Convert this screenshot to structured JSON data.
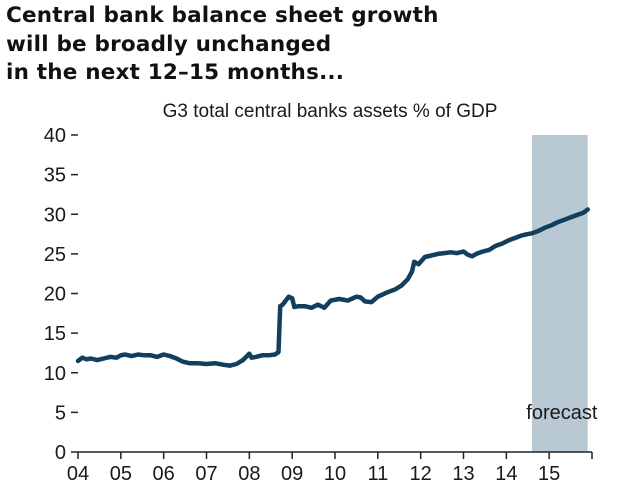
{
  "headline": {
    "lines": [
      "Central bank balance sheet growth",
      "will be broadly unchanged",
      "in the next 12–15 months..."
    ]
  },
  "chart_data": {
    "type": "line",
    "title": "G3 total central banks assets % of GDP",
    "xlabel": "",
    "ylabel": "",
    "ylim": [
      0,
      40
    ],
    "yticks": [
      0,
      5,
      10,
      15,
      20,
      25,
      30,
      35,
      40
    ],
    "xlim": [
      2004,
      2016
    ],
    "xtick_labels": [
      "04",
      "05",
      "06",
      "07",
      "08",
      "09",
      "10",
      "11",
      "12",
      "13",
      "14",
      "15"
    ],
    "grid": false,
    "forecast": {
      "label": "forecast",
      "start": 2014.6,
      "end": 2015.9,
      "color": "#b9c9d3"
    },
    "line_color": "#123f5e",
    "series": [
      {
        "x": [
          2004.0,
          2004.1,
          2004.2,
          2004.3,
          2004.45,
          2004.6,
          2004.75,
          2004.9,
          2005.0,
          2005.1,
          2005.25,
          2005.4,
          2005.55,
          2005.7,
          2005.85,
          2006.0,
          2006.15,
          2006.3,
          2006.45,
          2006.6,
          2006.8,
          2007.0,
          2007.2,
          2007.4,
          2007.55,
          2007.7,
          2007.85,
          2008.0,
          2008.05,
          2008.15,
          2008.3,
          2008.45,
          2008.6,
          2008.68,
          2008.72,
          2008.78,
          2008.85,
          2008.92,
          2009.0,
          2009.05,
          2009.15,
          2009.3,
          2009.45,
          2009.6,
          2009.75,
          2009.9,
          2010.1,
          2010.3,
          2010.5,
          2010.6,
          2010.7,
          2010.85,
          2011.0,
          2011.2,
          2011.4,
          2011.55,
          2011.7,
          2011.8,
          2011.85,
          2011.95,
          2012.1,
          2012.25,
          2012.4,
          2012.55,
          2012.7,
          2012.85,
          2013.0,
          2013.1,
          2013.2,
          2013.3,
          2013.45,
          2013.6,
          2013.75,
          2013.9,
          2014.05,
          2014.2,
          2014.35,
          2014.5,
          2014.6,
          2014.75,
          2014.9,
          2015.05,
          2015.2,
          2015.35,
          2015.5,
          2015.65,
          2015.8,
          2015.9
        ],
        "values": [
          11.5,
          11.9,
          11.7,
          11.8,
          11.6,
          11.8,
          12.0,
          11.9,
          12.2,
          12.3,
          12.1,
          12.3,
          12.2,
          12.2,
          12.0,
          12.3,
          12.1,
          11.8,
          11.4,
          11.2,
          11.2,
          11.1,
          11.2,
          11.0,
          10.9,
          11.1,
          11.6,
          12.4,
          11.9,
          12.0,
          12.2,
          12.2,
          12.3,
          12.6,
          18.4,
          18.6,
          19.1,
          19.6,
          19.4,
          18.3,
          18.4,
          18.4,
          18.2,
          18.6,
          18.2,
          19.1,
          19.3,
          19.1,
          19.6,
          19.5,
          19.0,
          18.9,
          19.6,
          20.1,
          20.5,
          21.0,
          21.8,
          22.8,
          24.0,
          23.7,
          24.6,
          24.8,
          25.0,
          25.1,
          25.2,
          25.1,
          25.3,
          24.9,
          24.7,
          25.0,
          25.3,
          25.5,
          26.0,
          26.3,
          26.7,
          27.0,
          27.3,
          27.5,
          27.6,
          27.9,
          28.3,
          28.6,
          29.0,
          29.3,
          29.6,
          29.9,
          30.2,
          30.6
        ]
      }
    ]
  }
}
